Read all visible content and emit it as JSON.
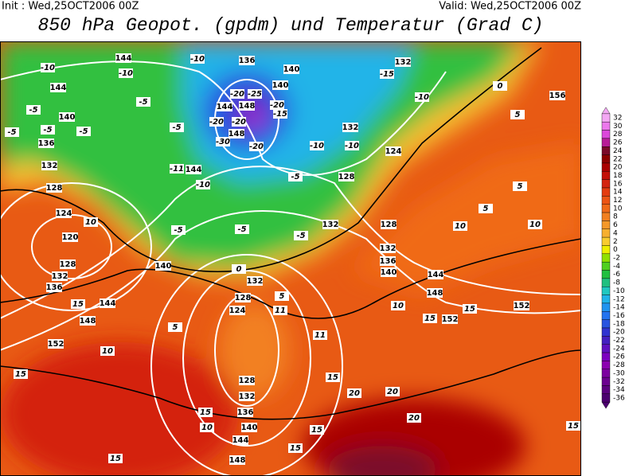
{
  "header": {
    "init": "Init : Wed,25OCT2006 00Z",
    "valid": "Valid: Wed,25OCT2006 00Z",
    "title": "850 hPa Geopot. (gpdm) und Temperatur (Grad C)"
  },
  "colorbar": {
    "values": [
      32,
      30,
      28,
      26,
      24,
      22,
      20,
      18,
      16,
      14,
      12,
      10,
      8,
      6,
      4,
      2,
      0,
      -2,
      -4,
      -6,
      -8,
      -10,
      -12,
      -14,
      -16,
      -18,
      -20,
      -22,
      -24,
      -26,
      -28,
      -30,
      -32,
      -34,
      -36
    ],
    "colors": [
      "#f4a8f4",
      "#ec78ec",
      "#dc48dc",
      "#b81c98",
      "#7a0a2a",
      "#8c0000",
      "#aa0000",
      "#c41008",
      "#d42410",
      "#e43c10",
      "#ec5414",
      "#f06a18",
      "#f28020",
      "#f49828",
      "#f6b030",
      "#f8cc30",
      "#eeee00",
      "#90e000",
      "#50d020",
      "#20c040",
      "#20c080",
      "#20c8c0",
      "#20b4e8",
      "#2094f0",
      "#2474f0",
      "#2854e0",
      "#3034d0",
      "#4420c0",
      "#6010c0",
      "#7c00c0",
      "#8c00b0",
      "#7c00a0",
      "#6c0090",
      "#5c0080",
      "#4c0070"
    ]
  },
  "map": {
    "geopotential_labels": [
      144,
      144,
      140,
      136,
      132,
      128,
      124,
      120,
      128,
      132,
      136,
      140,
      144,
      148,
      152,
      132,
      128,
      124,
      128,
      132,
      136,
      140,
      144,
      148,
      132,
      128,
      132,
      128,
      132,
      136,
      140,
      144,
      148,
      152,
      152,
      156,
      140,
      140,
      148,
      148,
      144,
      144,
      136,
      132,
      124
    ],
    "temperature_labels": [
      -10,
      -10,
      -10,
      -5,
      -5,
      -5,
      -5,
      -5,
      -5,
      -20,
      -25,
      -20,
      -20,
      -20,
      -30,
      -20,
      -15,
      -15,
      -10,
      -10,
      -10,
      -11,
      -10,
      -5,
      -5,
      -5,
      -5,
      0,
      5,
      5,
      10,
      15,
      10,
      15,
      11,
      11,
      15,
      20,
      20,
      20,
      15,
      10,
      15,
      15,
      15,
      15,
      10,
      10,
      10,
      15,
      15,
      5,
      5,
      5,
      0
    ]
  }
}
